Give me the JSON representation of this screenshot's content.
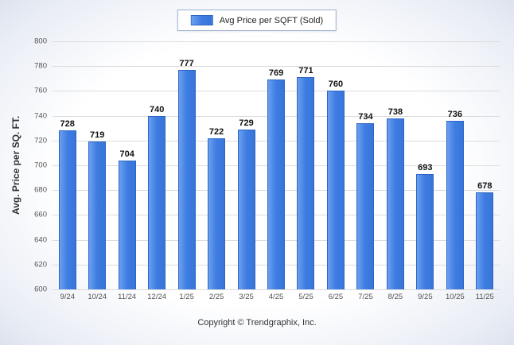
{
  "legend": {
    "label": "Avg Price per SQFT (Sold)",
    "swatch_color": "#3e7ce2"
  },
  "footer": {
    "copyright": "Copyright © Trendgraphix, Inc."
  },
  "chart_data": {
    "type": "bar",
    "title": "",
    "categories": [
      "9/24",
      "10/24",
      "11/24",
      "12/24",
      "1/25",
      "2/25",
      "3/25",
      "4/25",
      "5/25",
      "6/25",
      "7/25",
      "8/25",
      "9/25",
      "10/25",
      "11/25"
    ],
    "values": [
      728,
      719,
      704,
      740,
      777,
      722,
      729,
      769,
      771,
      760,
      734,
      738,
      693,
      736,
      678
    ],
    "series_name": "Avg Price per SQFT (Sold)",
    "xlabel": "",
    "ylabel": "Avg. Price per SQ. FT.",
    "ylim": [
      600,
      800
    ],
    "ytick_step": 20,
    "bar_color": "#3e7ce2",
    "grid": true,
    "legend_position": "top"
  }
}
